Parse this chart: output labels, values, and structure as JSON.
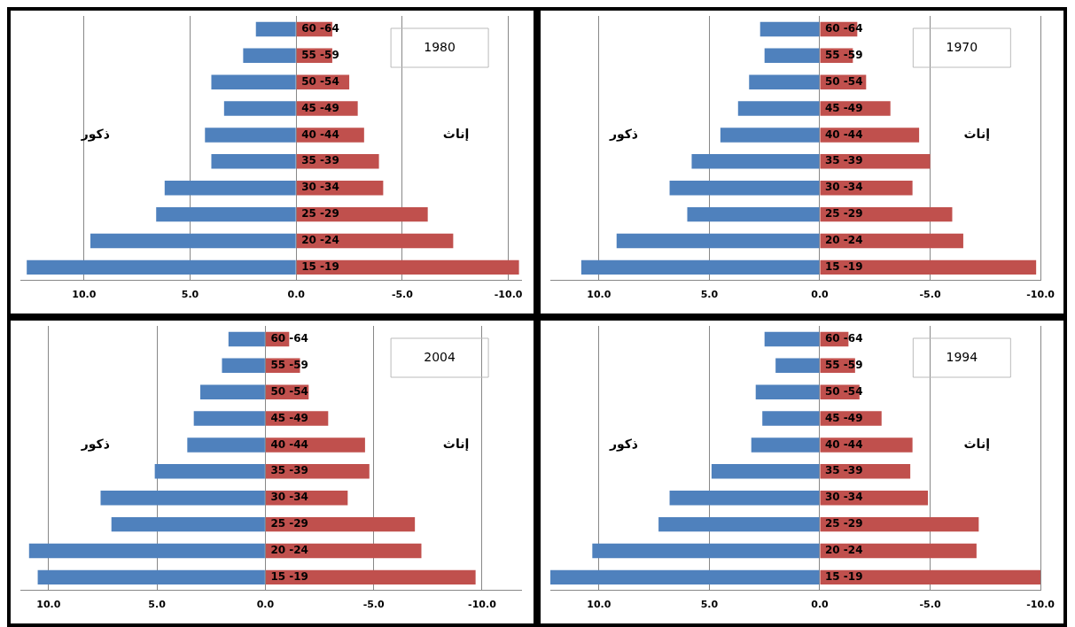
{
  "chart_data": [
    {
      "type": "bar",
      "orientation": "horizontal",
      "stacked": true,
      "title": "1980",
      "categories": [
        "60 -64",
        "55 -59",
        "50 -54",
        "45 -49",
        "40 -44",
        "35 -39",
        "30 -34",
        "25 -29",
        "20 -24",
        "15 -19"
      ],
      "series": [
        {
          "color": "#4f81bd",
          "values": [
            1.9,
            2.5,
            4.0,
            3.4,
            4.3,
            4.0,
            6.2,
            6.6,
            9.7,
            12.7
          ]
        },
        {
          "color": "#c0504d",
          "values": [
            -1.7,
            -1.7,
            -2.5,
            -2.9,
            -3.2,
            -3.9,
            -4.1,
            -6.2,
            -7.4,
            -10.5
          ]
        }
      ],
      "xlim": [
        13,
        -10.6
      ],
      "xticks": [
        {
          "value": 10,
          "label": "10.0"
        },
        {
          "value": 5,
          "label": "5.0"
        },
        {
          "value": 0,
          "label": "0.0"
        },
        {
          "value": -5,
          "label": "-5.0"
        },
        {
          "value": -10,
          "label": "-10.0"
        }
      ],
      "grid": "x",
      "annotations": [
        "ذكور",
        "إناث"
      ]
    },
    {
      "type": "bar",
      "orientation": "horizontal",
      "stacked": true,
      "title": "1970",
      "categories": [
        "60 -64",
        "55 -59",
        "50 -54",
        "45 -49",
        "40 -44",
        "35 -39",
        "30 -34",
        "25 -29",
        "20 -24",
        "15 -19"
      ],
      "series": [
        {
          "color": "#4f81bd",
          "values": [
            2.7,
            2.5,
            3.2,
            3.7,
            4.5,
            5.8,
            6.8,
            6.0,
            9.2,
            10.8
          ]
        },
        {
          "color": "#c0504d",
          "values": [
            -1.7,
            -1.5,
            -2.1,
            -3.2,
            -4.5,
            -5.0,
            -4.2,
            -6.0,
            -6.5,
            -9.8
          ]
        }
      ],
      "xlim": [
        12.2,
        -10
      ],
      "xticks": [
        {
          "value": 10,
          "label": "10.0"
        },
        {
          "value": 5,
          "label": "5.0"
        },
        {
          "value": 0,
          "label": "0.0"
        },
        {
          "value": -5,
          "label": "-5.0"
        },
        {
          "value": -10,
          "label": "-10.0"
        }
      ],
      "grid": "x",
      "annotations": [
        "ذكور",
        "إناث"
      ]
    },
    {
      "type": "bar",
      "orientation": "horizontal",
      "stacked": true,
      "title": "2004",
      "categories": [
        "60 -64",
        "55 -59",
        "50 -54",
        "45 -49",
        "40 -44",
        "35 -39",
        "30 -34",
        "25 -29",
        "20 -24",
        "15 -19"
      ],
      "series": [
        {
          "color": "#4f81bd",
          "values": [
            1.7,
            2.0,
            3.0,
            3.3,
            3.6,
            5.1,
            7.6,
            7.1,
            10.9,
            10.5
          ]
        },
        {
          "color": "#c0504d",
          "values": [
            -1.1,
            -1.6,
            -2.0,
            -2.9,
            -4.6,
            -4.8,
            -3.8,
            -6.9,
            -7.2,
            -9.7
          ]
        }
      ],
      "xlim": [
        11.3,
        -11.8
      ],
      "xticks": [
        {
          "value": 10,
          "label": "10.0"
        },
        {
          "value": 5,
          "label": "5.0"
        },
        {
          "value": 0,
          "label": "0.0"
        },
        {
          "value": -5,
          "label": "-5.0"
        },
        {
          "value": -10,
          "label": "-10.0"
        }
      ],
      "grid": "x",
      "annotations": [
        "ذكور",
        "إناث"
      ]
    },
    {
      "type": "bar",
      "orientation": "horizontal",
      "stacked": true,
      "title": "1994",
      "categories": [
        "60 -64",
        "55 -59",
        "50 -54",
        "45 -49",
        "40 -44",
        "35 -39",
        "30 -34",
        "25 -29",
        "20 -24",
        "15 -19"
      ],
      "series": [
        {
          "color": "#4f81bd",
          "values": [
            2.5,
            2.0,
            2.9,
            2.6,
            3.1,
            4.9,
            6.8,
            7.3,
            10.3,
            12.2
          ]
        },
        {
          "color": "#c0504d",
          "values": [
            -1.3,
            -1.6,
            -1.8,
            -2.8,
            -4.2,
            -4.1,
            -4.9,
            -7.2,
            -7.1,
            -10.0
          ]
        }
      ],
      "xlim": [
        12.2,
        -10
      ],
      "xticks": [
        {
          "value": 10,
          "label": "10.0"
        },
        {
          "value": 5,
          "label": "5.0"
        },
        {
          "value": 0,
          "label": "0.0"
        },
        {
          "value": -5,
          "label": "-5.0"
        },
        {
          "value": -10,
          "label": "-10.0"
        }
      ],
      "grid": "x",
      "annotations": [
        "ذكور",
        "إناث"
      ]
    }
  ]
}
